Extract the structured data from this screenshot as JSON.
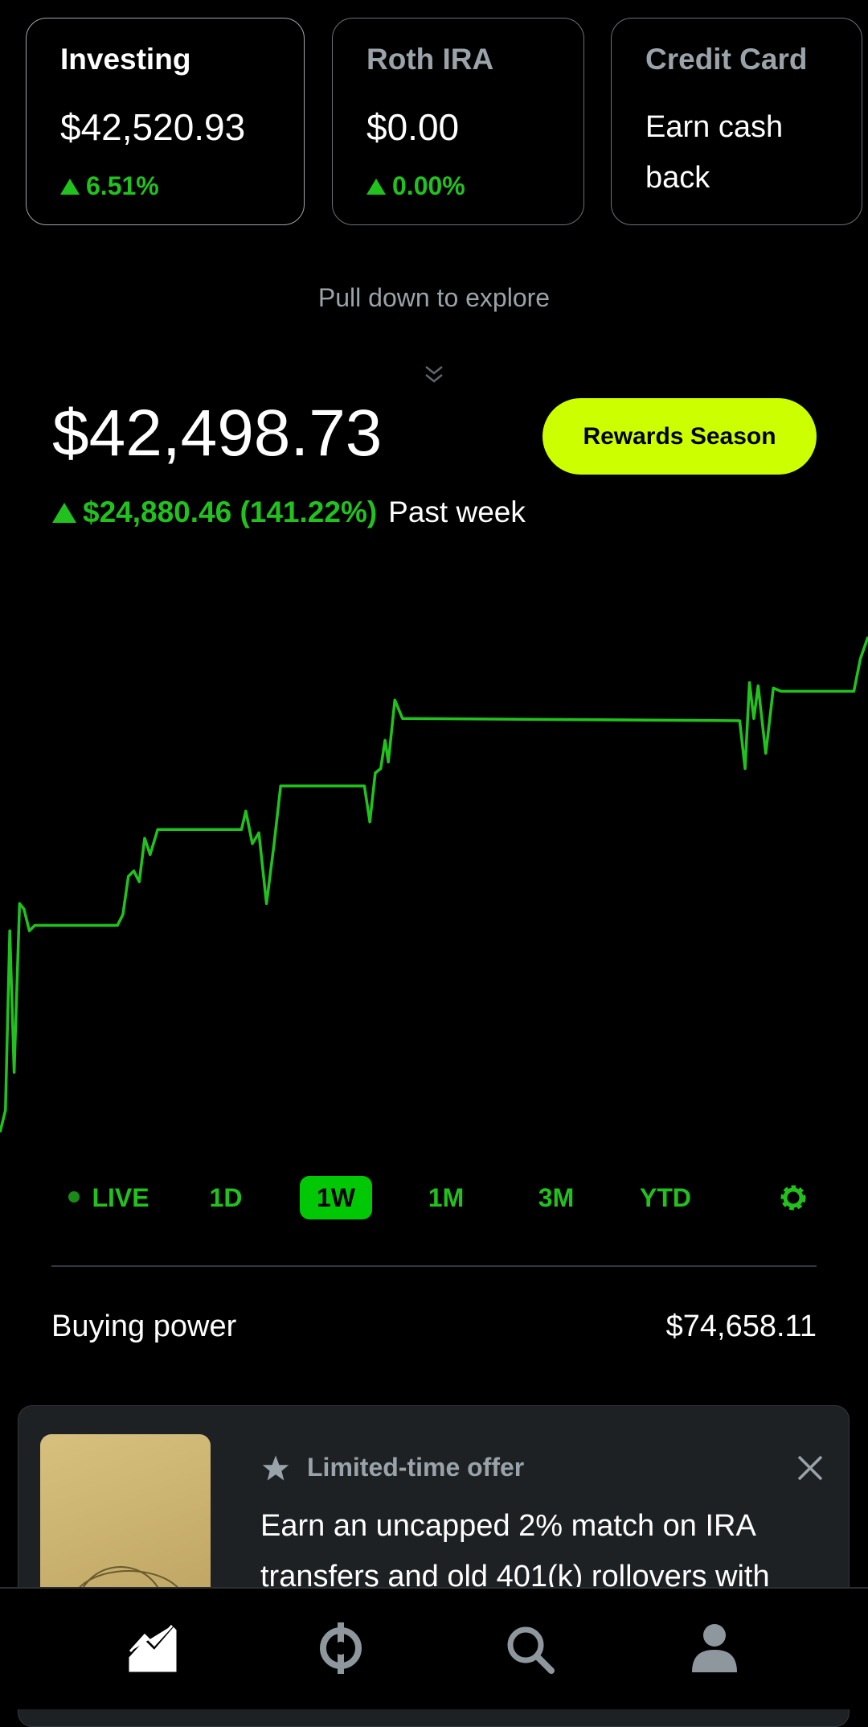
{
  "accounts": [
    {
      "title": "Investing",
      "value": "$42,520.93",
      "change": "6.51%"
    },
    {
      "title": "Roth IRA",
      "value": "$0.00",
      "change": "0.00%"
    },
    {
      "title": "Credit Card",
      "text": "Earn cash back"
    }
  ],
  "pull_hint": "Pull down to explore",
  "portfolio": {
    "value": "$42,498.73",
    "change": "$24,880.46 (141.22%)",
    "period": "Past week"
  },
  "rewards_button": "Rewards Season",
  "ranges": [
    "LIVE",
    "1D",
    "1W",
    "1M",
    "3M",
    "YTD"
  ],
  "selected_range": 2,
  "buying_power": {
    "label": "Buying power",
    "value": "$74,658.11"
  },
  "promo": {
    "tag": "Limited-time offer",
    "text": "Earn an uncapped 2% match on IRA transfers and old 401(k) rollovers with"
  }
}
